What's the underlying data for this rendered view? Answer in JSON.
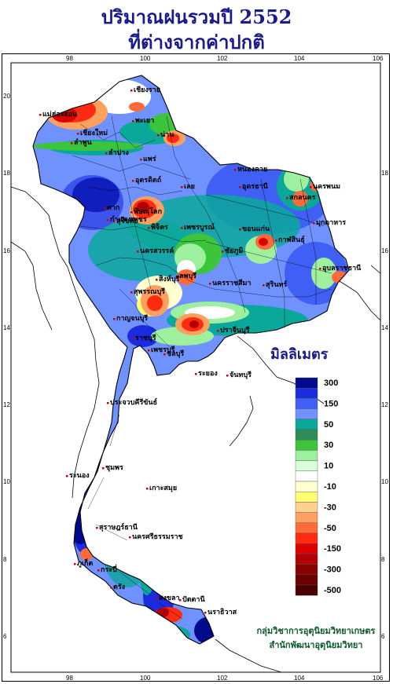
{
  "title": {
    "line1": "ปริมาณฝนรวมปี  2552",
    "line2": "ที่ต่างจากค่าปกติ"
  },
  "axes": {
    "lon_ticks": [
      "98",
      "100",
      "102",
      "104",
      "106"
    ],
    "lat_ticks": [
      "20",
      "18",
      "16",
      "14",
      "12",
      "10",
      "8",
      "6"
    ]
  },
  "legend": {
    "title": "มิลลิเมตร",
    "classes": [
      {
        "label": "300",
        "color": "#000a8c"
      },
      {
        "label": "",
        "color": "#1a2be0"
      },
      {
        "label": "150",
        "color": "#3f5ff5"
      },
      {
        "label": "",
        "color": "#6f92ff"
      },
      {
        "label": "50",
        "color": "#0aa89a"
      },
      {
        "label": "",
        "color": "#2e8b57"
      },
      {
        "label": "30",
        "color": "#3cc43c"
      },
      {
        "label": "",
        "color": "#9ef09e"
      },
      {
        "label": "10",
        "color": "#d8ffd8"
      },
      {
        "label": "",
        "color": "#ffffff"
      },
      {
        "label": "-10",
        "color": "#ffffd0"
      },
      {
        "label": "",
        "color": "#ffff70"
      },
      {
        "label": "-30",
        "color": "#ffd090"
      },
      {
        "label": "",
        "color": "#ffa060"
      },
      {
        "label": "-50",
        "color": "#ff6a3a"
      },
      {
        "label": "",
        "color": "#ff2a10"
      },
      {
        "label": "-150",
        "color": "#dd0000"
      },
      {
        "label": "",
        "color": "#b00000"
      },
      {
        "label": "-300",
        "color": "#880000"
      },
      {
        "label": "",
        "color": "#6a0000"
      },
      {
        "label": "-500",
        "color": "#4a0000"
      }
    ]
  },
  "provinces": [
    "เชียงราย",
    "แม่ฮ่องสอน",
    "เชียงใหม่",
    "ลำพูน",
    "ลำปาง",
    "พะเยา",
    "น่าน",
    "แพร่",
    "อุตรดิตถ์",
    "ตาก",
    "พิษณุโลก",
    "สุโขทัย",
    "กำแพงเพชร",
    "พิจิตร",
    "เพชรบูรณ์",
    "เลย",
    "หนองคาย",
    "อุดรธานี",
    "นครพนม",
    "สกลนคร",
    "มุกดาหาร",
    "ขอนแก่น",
    "กาฬสินธุ์",
    "ชัยภูมิ",
    "นครสวรรค์",
    "ลพบุรี",
    "สิงห์บุรี",
    "สุพรรณบุรี",
    "กาญจนบุรี",
    "นครราชสีมา",
    "สุรินทร์",
    "อุบลราชธานี",
    "ปราจีนบุรี",
    "ราชบุรี",
    "ชลบุรี",
    "ระยอง",
    "จันทบุรี",
    "เพชรบุรี",
    "ประจวบคีรีขันธ์",
    "ชุมพร",
    "ระนอง",
    "สุราษฎร์ธานี",
    "นครศรีธรรมราช",
    "ภูเก็ต",
    "กระบี่",
    "ตรัง",
    "สงขลา",
    "ปัตตานี",
    "นราธิวาส",
    "เกาะสมุย"
  ],
  "credit": {
    "line1": "กลุ่มวิชาการอุตุนิยมวิทยาเกษตร",
    "line2": "สำนักพัฒนาอุตุนิยมวิทยา"
  },
  "colors": {
    "title": "#1a1a8c",
    "credit": "#0b5a2a",
    "border": "#000000"
  }
}
